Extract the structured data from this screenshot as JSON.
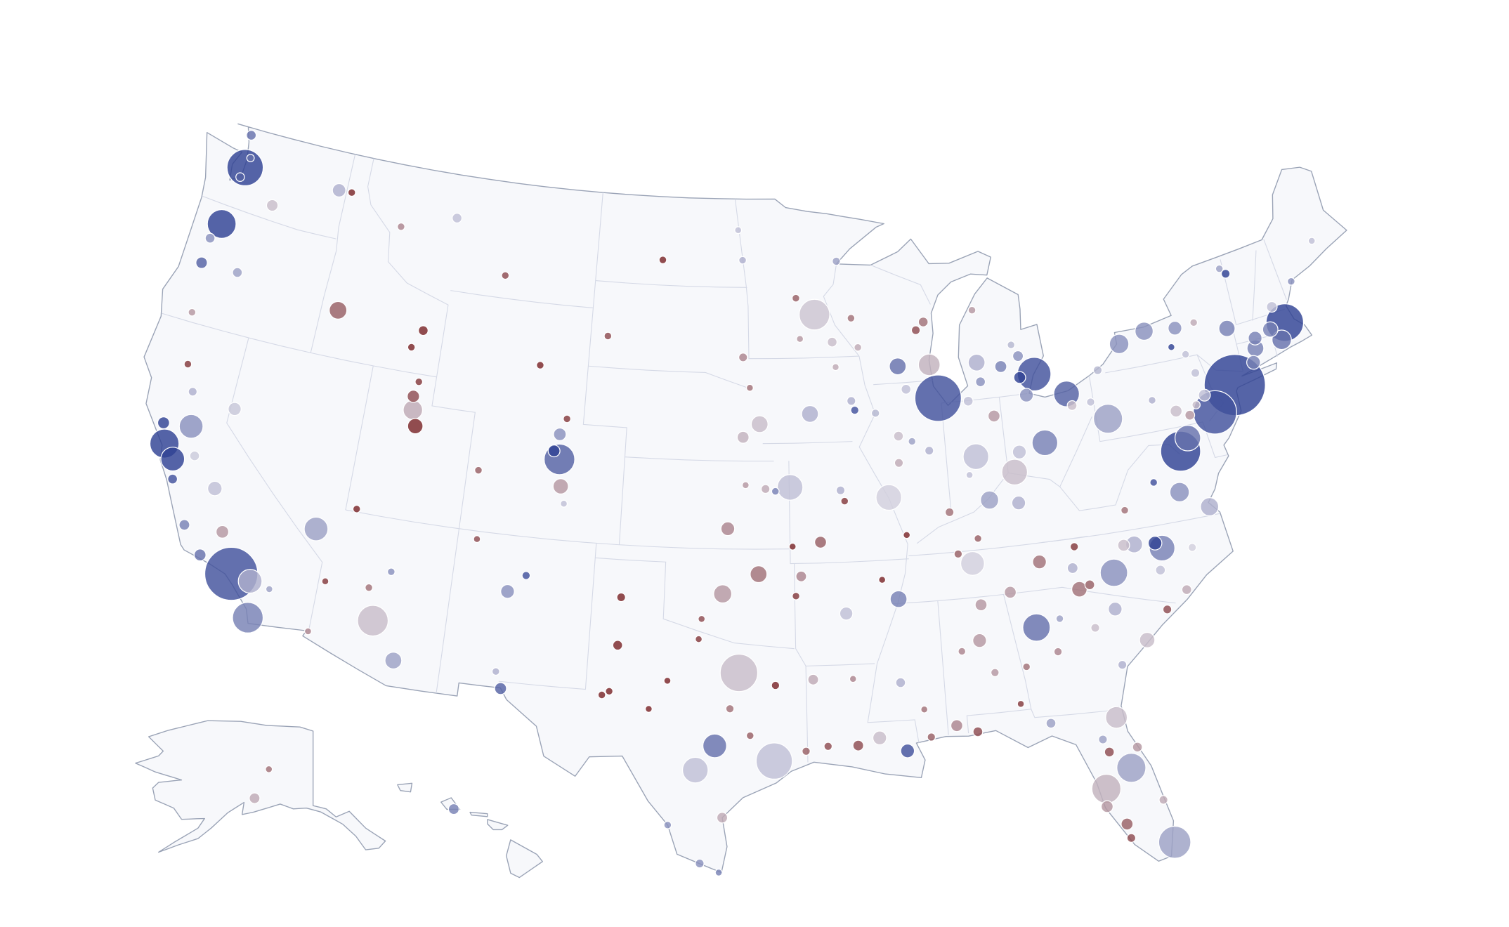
{
  "map": {
    "bubbles": [
      [
        -122.33,
        47.61,
        1400,
        50
      ],
      [
        -122.48,
        48.75,
        100,
        30
      ],
      [
        -122.2,
        47.98,
        60,
        30
      ],
      [
        -122.44,
        47.25,
        80,
        35
      ],
      [
        -117.43,
        47.66,
        190,
        10
      ],
      [
        -120.51,
        46.6,
        140,
        -5
      ],
      [
        -122.68,
        45.52,
        880,
        45
      ],
      [
        -123.03,
        44.94,
        100,
        20
      ],
      [
        -123.09,
        44.05,
        140,
        35
      ],
      [
        -121.31,
        44.06,
        100,
        15
      ],
      [
        -122.87,
        42.33,
        60,
        -15
      ],
      [
        -116.2,
        43.62,
        330,
        -30
      ],
      [
        -112.03,
        43.49,
        100,
        -55
      ],
      [
        -112.45,
        42.86,
        60,
        -45
      ],
      [
        -116.78,
        47.68,
        60,
        -50
      ],
      [
        -114,
        46.87,
        60,
        -20
      ],
      [
        -111.3,
        47.5,
        100,
        5
      ],
      [
        -108.5,
        45.78,
        60,
        -35
      ],
      [
        -106.31,
        42.87,
        60,
        -55
      ],
      [
        -104.82,
        41.14,
        60,
        -40
      ],
      [
        -100.78,
        46.81,
        60,
        -50
      ],
      [
        -96.79,
        46.88,
        60,
        10
      ],
      [
        -97.03,
        47.92,
        50,
        5
      ],
      [
        -96.73,
        43.54,
        80,
        -20
      ],
      [
        -103.23,
        44.08,
        60,
        -35
      ],
      [
        -111.89,
        40.76,
        400,
        -10
      ],
      [
        -111.97,
        41.22,
        160,
        -35
      ],
      [
        -111.66,
        40.23,
        250,
        -50
      ],
      [
        -113.58,
        37.1,
        60,
        -55
      ],
      [
        -111.83,
        41.74,
        60,
        -40
      ],
      [
        -104.99,
        39.74,
        1000,
        35
      ],
      [
        -105.27,
        40.01,
        150,
        50
      ],
      [
        -105.08,
        40.59,
        170,
        20
      ],
      [
        -104.82,
        38.83,
        250,
        -15
      ],
      [
        -104.61,
        38.25,
        50,
        5
      ],
      [
        -108.55,
        39.06,
        60,
        -30
      ],
      [
        -115.14,
        36.17,
        600,
        15
      ],
      [
        -119.81,
        39.53,
        180,
        3
      ],
      [
        -118.24,
        34.05,
        3000,
        40
      ],
      [
        -122.42,
        37.77,
        900,
        70
      ],
      [
        -121.89,
        37.34,
        600,
        45
      ],
      [
        -121.49,
        38.58,
        600,
        20
      ],
      [
        -119.79,
        36.74,
        220,
        5
      ],
      [
        -119.02,
        35.37,
        170,
        -15
      ],
      [
        -117.16,
        32.72,
        1000,
        25
      ],
      [
        -117.4,
        33.95,
        600,
        10
      ],
      [
        -116.55,
        33.83,
        50,
        15
      ],
      [
        -119.7,
        34.42,
        150,
        30
      ],
      [
        -122.71,
        38.44,
        150,
        45
      ],
      [
        -122.39,
        40.59,
        60,
        -40
      ],
      [
        -121.84,
        39.73,
        80,
        10
      ],
      [
        -121,
        37.64,
        100,
        2
      ],
      [
        -121.66,
        36.68,
        100,
        40
      ],
      [
        -120.66,
        35.28,
        120,
        25
      ],
      [
        -112.07,
        33.45,
        1000,
        -5
      ],
      [
        -110.97,
        32.22,
        300,
        15
      ],
      [
        -111.65,
        35.2,
        60,
        20
      ],
      [
        -112.47,
        34.54,
        60,
        -25
      ],
      [
        -114.62,
        32.69,
        50,
        -20
      ],
      [
        -114.32,
        34.48,
        50,
        -40
      ],
      [
        -106.65,
        35.08,
        200,
        20
      ],
      [
        -105.94,
        35.69,
        70,
        40
      ],
      [
        -106.76,
        32.32,
        60,
        10
      ],
      [
        -108.22,
        36.73,
        50,
        -35
      ],
      [
        -106.49,
        31.76,
        150,
        35
      ],
      [
        -96.8,
        32.78,
        1500,
        -5
      ],
      [
        -95.37,
        29.76,
        1400,
        5
      ],
      [
        -97.74,
        30.27,
        600,
        30
      ],
      [
        -98.49,
        29.42,
        700,
        5
      ],
      [
        -101.85,
        33.58,
        100,
        -45
      ],
      [
        -101.83,
        35.22,
        80,
        -50
      ],
      [
        -102.08,
        31.99,
        60,
        -60
      ],
      [
        -102.37,
        31.85,
        60,
        -55
      ],
      [
        -99.73,
        32.45,
        50,
        -50
      ],
      [
        -98.49,
        33.91,
        50,
        -40
      ],
      [
        -97.15,
        31.55,
        70,
        -25
      ],
      [
        -95.3,
        32.35,
        70,
        -45
      ],
      [
        -94.1,
        30.08,
        70,
        -30
      ],
      [
        -97.4,
        27.8,
        120,
        -10
      ],
      [
        -99.5,
        27.5,
        60,
        20
      ],
      [
        -98.23,
        26.2,
        80,
        20
      ],
      [
        -97.5,
        25.9,
        50,
        25
      ],
      [
        -96.33,
        30.63,
        60,
        -30
      ],
      [
        -100.44,
        31.46,
        50,
        -50
      ],
      [
        -97.52,
        35.47,
        350,
        -15
      ],
      [
        -95.99,
        36.15,
        300,
        -25
      ],
      [
        -98.39,
        34.6,
        50,
        -35
      ],
      [
        -97.34,
        37.69,
        200,
        -20
      ],
      [
        -94.58,
        39.1,
        700,
        5
      ],
      [
        -95.68,
        39.05,
        80,
        -10
      ],
      [
        -95.24,
        38.97,
        60,
        25
      ],
      [
        -96.57,
        39.18,
        50,
        -15
      ],
      [
        -95.94,
        41.26,
        300,
        -5
      ],
      [
        -96.7,
        40.81,
        150,
        -8
      ],
      [
        -96.4,
        42.5,
        50,
        -25
      ],
      [
        -93.61,
        41.59,
        300,
        10
      ],
      [
        -91.67,
        41.98,
        80,
        10
      ],
      [
        -91.53,
        41.66,
        70,
        40
      ],
      [
        -90.58,
        41.52,
        70,
        8
      ],
      [
        -93.27,
        44.98,
        1000,
        -3
      ],
      [
        -92.46,
        44.02,
        100,
        -5
      ],
      [
        -92.1,
        46.79,
        70,
        15
      ],
      [
        -94.16,
        45.56,
        60,
        -30
      ],
      [
        -94,
        44.16,
        50,
        -15
      ],
      [
        -87.91,
        43.04,
        500,
        -8
      ],
      [
        -89.4,
        43.07,
        300,
        30
      ],
      [
        -88.02,
        44.52,
        100,
        -25
      ],
      [
        -88.41,
        44.26,
        80,
        -35
      ],
      [
        -91.24,
        43.8,
        60,
        -10
      ],
      [
        -91.5,
        44.81,
        60,
        -25
      ],
      [
        -92.34,
        43.16,
        50,
        -10
      ],
      [
        -87.63,
        41.88,
        2300,
        40
      ],
      [
        -89.09,
        42.27,
        100,
        5
      ],
      [
        -89.59,
        40.69,
        100,
        -5
      ],
      [
        -89.65,
        39.78,
        80,
        -10
      ],
      [
        -88.24,
        40.12,
        80,
        10
      ],
      [
        -88.99,
        40.48,
        60,
        15
      ],
      [
        -86.16,
        39.77,
        700,
        5
      ],
      [
        -85.14,
        41.08,
        150,
        -15
      ],
      [
        -86.25,
        41.68,
        100,
        5
      ],
      [
        -87.57,
        37.97,
        80,
        -25
      ],
      [
        -86.53,
        39.17,
        50,
        5
      ],
      [
        -82.99,
        39.96,
        700,
        25
      ],
      [
        -81.69,
        41.5,
        700,
        35
      ],
      [
        -84.51,
        39.1,
        700,
        -5
      ],
      [
        -84.19,
        39.76,
        200,
        5
      ],
      [
        -83.54,
        41.65,
        200,
        20
      ],
      [
        -81.52,
        41.08,
        100,
        -5
      ],
      [
        -80.65,
        41.1,
        70,
        5
      ],
      [
        -83.05,
        42.33,
        1200,
        40
      ],
      [
        -85.67,
        42.96,
        300,
        10
      ],
      [
        -84.56,
        42.73,
        150,
        25
      ],
      [
        -83.69,
        43.01,
        120,
        20
      ],
      [
        -83.74,
        42.28,
        150,
        45
      ],
      [
        -85.59,
        42.29,
        100,
        20
      ],
      [
        -85.62,
        44.76,
        60,
        -15
      ],
      [
        -83.95,
        43.42,
        60,
        8
      ],
      [
        -74.01,
        40.71,
        4000,
        50
      ],
      [
        -75.17,
        39.95,
        2000,
        40
      ],
      [
        -79.99,
        40.44,
        900,
        15
      ],
      [
        -76.88,
        40.27,
        150,
        -5
      ],
      [
        -75.47,
        40.6,
        150,
        5
      ],
      [
        -76.31,
        40.04,
        100,
        -15
      ],
      [
        -75.66,
        41.41,
        80,
        5
      ],
      [
        -80.09,
        42.13,
        80,
        8
      ],
      [
        -75.93,
        40.34,
        70,
        -5
      ],
      [
        -77.86,
        40.79,
        60,
        10
      ],
      [
        -78.88,
        42.89,
        400,
        20
      ],
      [
        -77.61,
        43.16,
        350,
        20
      ],
      [
        -76.15,
        43.05,
        200,
        20
      ],
      [
        -73.76,
        42.65,
        280,
        25
      ],
      [
        -76.5,
        42.44,
        50,
        45
      ],
      [
        -75.92,
        42.1,
        60,
        5
      ],
      [
        -75.23,
        43.1,
        60,
        -10
      ],
      [
        -73.45,
        44.7,
        60,
        15
      ],
      [
        -71.06,
        42.36,
        1500,
        50
      ],
      [
        -71.41,
        41.82,
        400,
        30
      ],
      [
        -72.69,
        41.76,
        300,
        25
      ],
      [
        -72.93,
        41.31,
        200,
        25
      ],
      [
        -72.59,
        42.1,
        200,
        25
      ],
      [
        -71.8,
        42.26,
        250,
        25
      ],
      [
        -71.46,
        42.99,
        120,
        5
      ],
      [
        -70.26,
        43.66,
        60,
        20
      ],
      [
        -68.77,
        44.8,
        50,
        5
      ],
      [
        -73.21,
        44.48,
        80,
        45
      ],
      [
        -77.04,
        38.9,
        1700,
        50
      ],
      [
        -76.61,
        39.29,
        700,
        30
      ],
      [
        -77.44,
        37.54,
        400,
        20
      ],
      [
        -76.29,
        36.85,
        350,
        10
      ],
      [
        -79.94,
        37.27,
        60,
        -25
      ],
      [
        -78.48,
        38.03,
        60,
        40
      ],
      [
        -80.84,
        35.23,
        800,
        20
      ],
      [
        -78.64,
        35.78,
        700,
        25
      ],
      [
        -79.79,
        36.07,
        300,
        10
      ],
      [
        -78.9,
        35.99,
        200,
        50
      ],
      [
        -80.24,
        36.1,
        150,
        -5
      ],
      [
        -78.88,
        35.05,
        100,
        5
      ],
      [
        -77.94,
        34.23,
        100,
        -10
      ],
      [
        -82.55,
        35.6,
        120,
        10
      ],
      [
        -77.37,
        35.61,
        70,
        0
      ],
      [
        -82.39,
        34.85,
        250,
        -25
      ],
      [
        -81.03,
        34,
        200,
        10
      ],
      [
        -79.93,
        32.78,
        250,
        -5
      ],
      [
        -78.89,
        33.69,
        80,
        -35
      ],
      [
        -81.93,
        34.95,
        100,
        -30
      ],
      [
        -84.39,
        33.75,
        800,
        30
      ],
      [
        -81.97,
        33.47,
        80,
        -5
      ],
      [
        -81.1,
        32.08,
        80,
        10
      ],
      [
        -83.63,
        32.84,
        70,
        -20
      ],
      [
        -84.99,
        32.46,
        60,
        -25
      ],
      [
        -83.38,
        33.95,
        60,
        15
      ],
      [
        -81.66,
        30.33,
        500,
        -5
      ],
      [
        -82.46,
        27.95,
        900,
        -8
      ],
      [
        -81.38,
        28.54,
        900,
        15
      ],
      [
        -80.19,
        25.76,
        1100,
        15
      ],
      [
        -84.28,
        30.44,
        100,
        15
      ],
      [
        -87.22,
        30.42,
        100,
        -35
      ],
      [
        -82.32,
        29.65,
        80,
        15
      ],
      [
        -81.02,
        29.21,
        100,
        -15
      ],
      [
        -81.87,
        26.64,
        150,
        -30
      ],
      [
        -82.53,
        27.34,
        150,
        -15
      ],
      [
        -80.35,
        27.27,
        80,
        -10
      ],
      [
        -81.79,
        26.14,
        80,
        -35
      ],
      [
        -82.14,
        29.19,
        100,
        -35
      ],
      [
        -86.8,
        33.52,
        200,
        -15
      ],
      [
        -86.59,
        34.73,
        150,
        -15
      ],
      [
        -86.3,
        32.38,
        70,
        -15
      ],
      [
        -88.04,
        30.69,
        150,
        -20
      ],
      [
        -87.57,
        33.21,
        60,
        -20
      ],
      [
        -85.39,
        31.22,
        50,
        -40
      ],
      [
        -86.78,
        36.16,
        600,
        0
      ],
      [
        -90.05,
        35.15,
        300,
        25
      ],
      [
        -83.92,
        35.96,
        200,
        -25
      ],
      [
        -85.31,
        35.05,
        150,
        -15
      ],
      [
        -87.36,
        36.53,
        70,
        -30
      ],
      [
        -82.35,
        36.31,
        70,
        -40
      ],
      [
        -85.76,
        38.25,
        350,
        15
      ],
      [
        -84.5,
        38.04,
        200,
        10
      ],
      [
        -86.44,
        36.99,
        60,
        -30
      ],
      [
        -90.18,
        32.3,
        100,
        10
      ],
      [
        -90.07,
        29.95,
        200,
        40
      ],
      [
        -91.15,
        30.45,
        200,
        -5
      ],
      [
        -92.02,
        30.22,
        120,
        -35
      ],
      [
        -93.75,
        32.53,
        120,
        -10
      ],
      [
        -93.22,
        30.23,
        70,
        -35
      ],
      [
        -92.12,
        32.51,
        50,
        -20
      ],
      [
        -89.09,
        30.37,
        70,
        -30
      ],
      [
        -89.29,
        31.33,
        50,
        -25
      ],
      [
        -92.29,
        34.75,
        180,
        5
      ],
      [
        -94.16,
        36.06,
        120,
        -20
      ],
      [
        -94.4,
        35.39,
        60,
        -40
      ],
      [
        -90.7,
        35.84,
        50,
        -45
      ],
      [
        -90.2,
        38.63,
        700,
        0
      ],
      [
        -93.29,
        37.21,
        150,
        -30
      ],
      [
        -92.33,
        38.95,
        80,
        10
      ],
      [
        -92.17,
        38.58,
        60,
        -40
      ],
      [
        -94.51,
        37.08,
        50,
        -45
      ],
      [
        -89.52,
        37.31,
        50,
        -45
      ]
    ],
    "alaska_bubbles": [
      [
        -149.9,
        61.22,
        120,
        -10
      ],
      [
        -147.72,
        64.84,
        50,
        -25
      ]
    ],
    "hawaii_bubbles": [
      [
        -157.86,
        21.31,
        120,
        25
      ]
    ]
  }
}
